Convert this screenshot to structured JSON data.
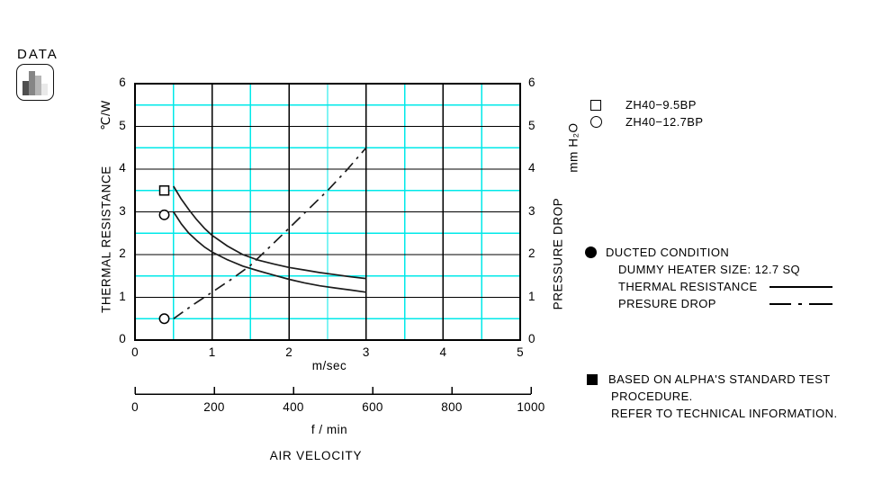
{
  "badge": {
    "label": "DATA",
    "icon": "bar-chart-icon",
    "bars": [
      {
        "height": 16,
        "color": "#4f4f4f"
      },
      {
        "height": 27,
        "color": "#868686"
      },
      {
        "height": 22,
        "color": "#b6b6b6"
      },
      {
        "height": 13,
        "color": "#e9e9e9"
      }
    ]
  },
  "colors": {
    "grid_minor": "#00e9e9",
    "grid_major": "#000000",
    "curve": "#1c1c1c",
    "background": "#ffffff"
  },
  "chart_data": {
    "type": "line",
    "title": "",
    "x_title": "AIR VELOCITY",
    "x_axis": {
      "unit": "m/sec",
      "min": 0,
      "max": 5,
      "ticks": [
        0,
        1,
        2,
        3,
        4,
        5
      ],
      "minor_step": 0.5
    },
    "x_axis_secondary": {
      "unit": "f / min",
      "ticks": [
        0,
        200,
        400,
        600,
        800,
        1000
      ]
    },
    "y_left": {
      "unit": "℃/W",
      "label": "THERMAL RESISTANCE",
      "min": 0,
      "max": 6,
      "ticks": [
        6,
        5,
        4,
        3,
        2,
        1,
        0
      ],
      "minor_step": 0.5
    },
    "y_right": {
      "unit": "mm H₂O",
      "label": "PRESSURE DROP",
      "min": 0,
      "max": 6,
      "ticks": [
        6,
        5,
        4,
        3,
        2,
        1,
        0
      ]
    },
    "grid": "on",
    "series": [
      {
        "name": "ZH40-9.5BP thermal resistance",
        "style": "solid",
        "marker": "square",
        "marker_at": [
          0.38,
          3.5
        ],
        "points": [
          [
            0.5,
            3.6
          ],
          [
            0.6,
            3.3
          ],
          [
            0.7,
            3.05
          ],
          [
            0.8,
            2.82
          ],
          [
            0.9,
            2.62
          ],
          [
            1.0,
            2.45
          ],
          [
            1.2,
            2.2
          ],
          [
            1.4,
            2.0
          ],
          [
            1.6,
            1.87
          ],
          [
            1.8,
            1.78
          ],
          [
            2.0,
            1.7
          ],
          [
            2.2,
            1.64
          ],
          [
            2.4,
            1.58
          ],
          [
            2.6,
            1.53
          ],
          [
            2.8,
            1.48
          ],
          [
            3.0,
            1.44
          ]
        ]
      },
      {
        "name": "ZH40-12.7BP thermal resistance",
        "style": "solid",
        "marker": "circle",
        "marker_at": [
          0.38,
          2.93
        ],
        "points": [
          [
            0.5,
            3.0
          ],
          [
            0.6,
            2.72
          ],
          [
            0.7,
            2.5
          ],
          [
            0.8,
            2.33
          ],
          [
            0.9,
            2.18
          ],
          [
            1.0,
            2.06
          ],
          [
            1.2,
            1.88
          ],
          [
            1.4,
            1.73
          ],
          [
            1.6,
            1.62
          ],
          [
            1.8,
            1.52
          ],
          [
            2.0,
            1.42
          ],
          [
            2.2,
            1.34
          ],
          [
            2.4,
            1.27
          ],
          [
            2.6,
            1.22
          ],
          [
            2.8,
            1.17
          ],
          [
            3.0,
            1.12
          ]
        ]
      },
      {
        "name": "pressure drop",
        "style": "dashdot",
        "marker": "circle",
        "marker_at": [
          0.38,
          0.5
        ],
        "points": [
          [
            0.5,
            0.5
          ],
          [
            0.75,
            0.82
          ],
          [
            1.0,
            1.12
          ],
          [
            1.25,
            1.42
          ],
          [
            1.5,
            1.75
          ],
          [
            1.75,
            2.18
          ],
          [
            2.0,
            2.62
          ],
          [
            2.25,
            3.06
          ],
          [
            2.5,
            3.5
          ],
          [
            2.75,
            3.98
          ],
          [
            3.0,
            4.5
          ]
        ]
      }
    ]
  },
  "legend": {
    "items": [
      {
        "marker": "square-outline-icon",
        "label": "ZH40−9.5BP"
      },
      {
        "marker": "circle-outline-icon",
        "label": "ZH40−12.7BP"
      }
    ]
  },
  "conditions": {
    "bullet_icon": "filled-circle",
    "title": "DUCTED CONDITION",
    "line1": "DUMMY HEATER SIZE: 12.7 SQ",
    "swatches": [
      {
        "label": "THERMAL RESISTANCE",
        "style": "solid"
      },
      {
        "label": "PRESURE DROP",
        "style": "dashdot"
      }
    ]
  },
  "footnote": {
    "bullet_icon": "filled-square",
    "line1": "BASED ON ALPHA'S STANDARD TEST",
    "line2": "PROCEDURE.",
    "line3": "REFER TO TECHNICAL INFORMATION."
  }
}
